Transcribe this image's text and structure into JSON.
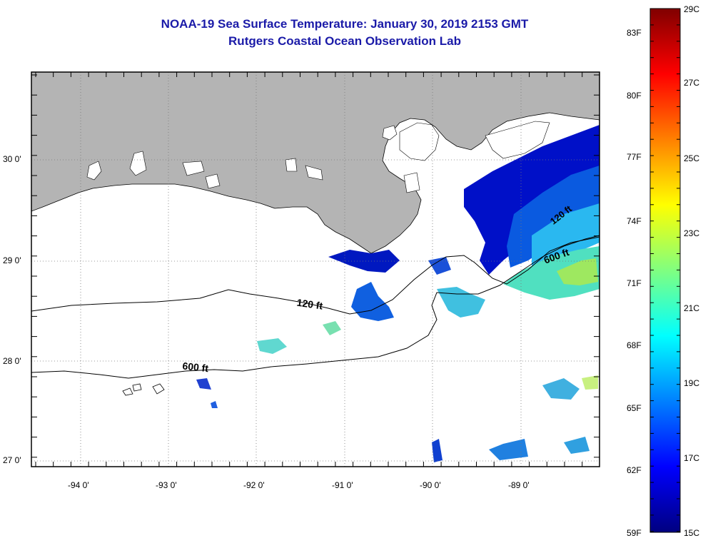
{
  "header": {
    "title": "NOAA-19 Sea Surface Temperature:  January 30, 2019 2153 GMT",
    "subtitle": "Rutgers Coastal Ocean Observation Lab"
  },
  "map": {
    "lat_labels": [
      "30 0'",
      "29 0'",
      "28 0'",
      "27 0'"
    ],
    "lon_labels": [
      "-94 0'",
      "-93 0'",
      "-92 0'",
      "-91 0'",
      "-90 0'",
      "-89 0'"
    ],
    "contours": [
      {
        "label": "120 ft"
      },
      {
        "label": "600 ft"
      },
      {
        "label": "600 ft"
      },
      {
        "label": "120 ft"
      }
    ],
    "colors": {
      "land": "#b4b4b4",
      "frame": "#000000",
      "grid": "#777777"
    }
  },
  "colorbar": {
    "fahrenheit_labels": [
      "83F",
      "80F",
      "77F",
      "74F",
      "71F",
      "68F",
      "65F",
      "62F",
      "59F"
    ],
    "celsius_labels": [
      "29C",
      "27C",
      "25C",
      "23C",
      "21C",
      "19C",
      "17C",
      "15C"
    ],
    "stops": [
      "#000080",
      "#0000ff",
      "#0080ff",
      "#00ffff",
      "#80ff80",
      "#ffff00",
      "#ff8000",
      "#ff0000",
      "#800000"
    ]
  }
}
